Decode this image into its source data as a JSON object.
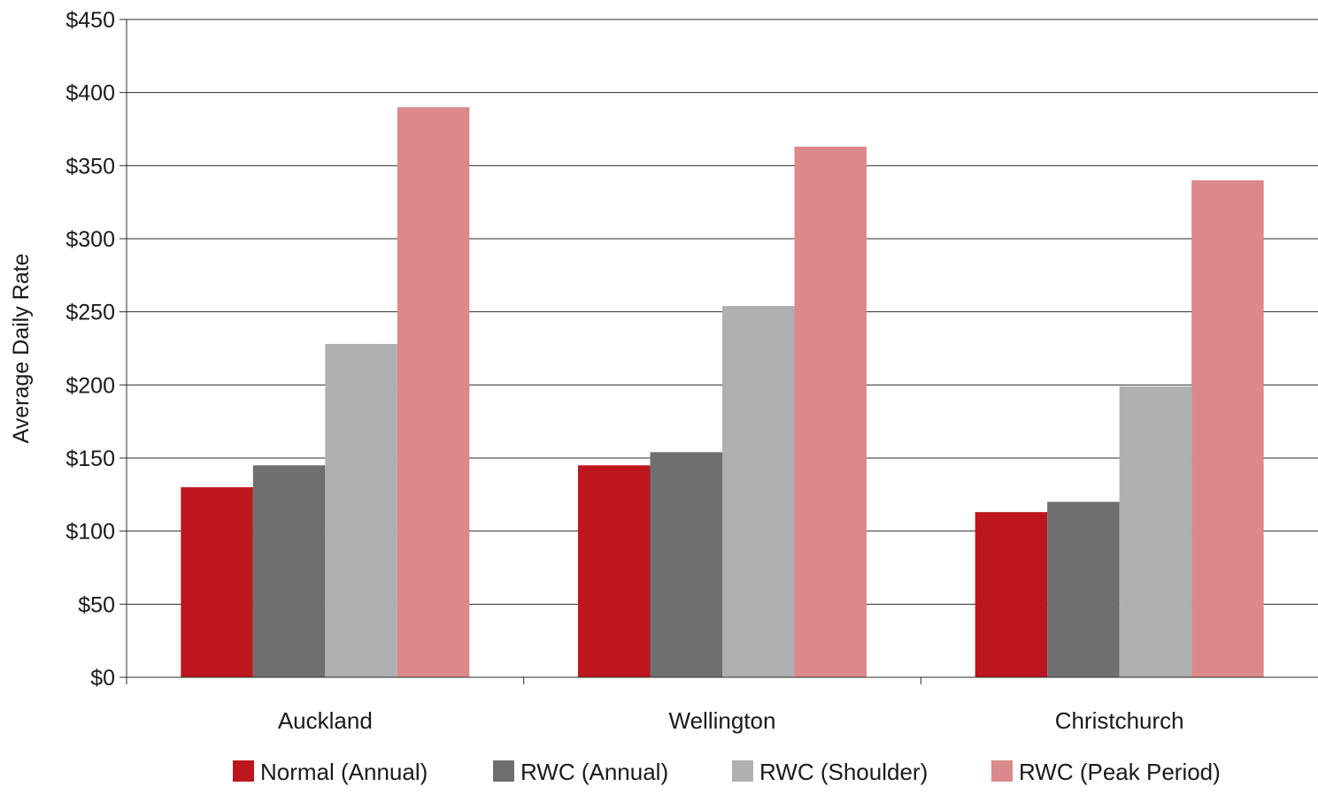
{
  "chart_data": {
    "type": "bar",
    "title": "",
    "xlabel": "",
    "ylabel": "Average Daily Rate",
    "ylim": [
      0,
      450
    ],
    "ytick_step": 50,
    "ytick_labels": [
      "$0",
      "$50",
      "$100",
      "$150",
      "$200",
      "$250",
      "$300",
      "$350",
      "$400",
      "$450"
    ],
    "grid": true,
    "legend_position": "bottom",
    "categories": [
      "Auckland",
      "Wellington",
      "Christchurch"
    ],
    "series": [
      {
        "name": "Normal (Annual)",
        "color": "#be161e",
        "values": [
          130,
          145,
          113
        ]
      },
      {
        "name": "RWC (Annual)",
        "color": "#6d6f71",
        "values": [
          145,
          154,
          120
        ]
      },
      {
        "name": "RWC (Shoulder)",
        "color": "#afb0b2",
        "values": [
          228,
          254,
          199
        ]
      },
      {
        "name": "RWC (Peak Period)",
        "color": "#dc898b",
        "values": [
          390,
          363,
          340
        ]
      }
    ]
  }
}
